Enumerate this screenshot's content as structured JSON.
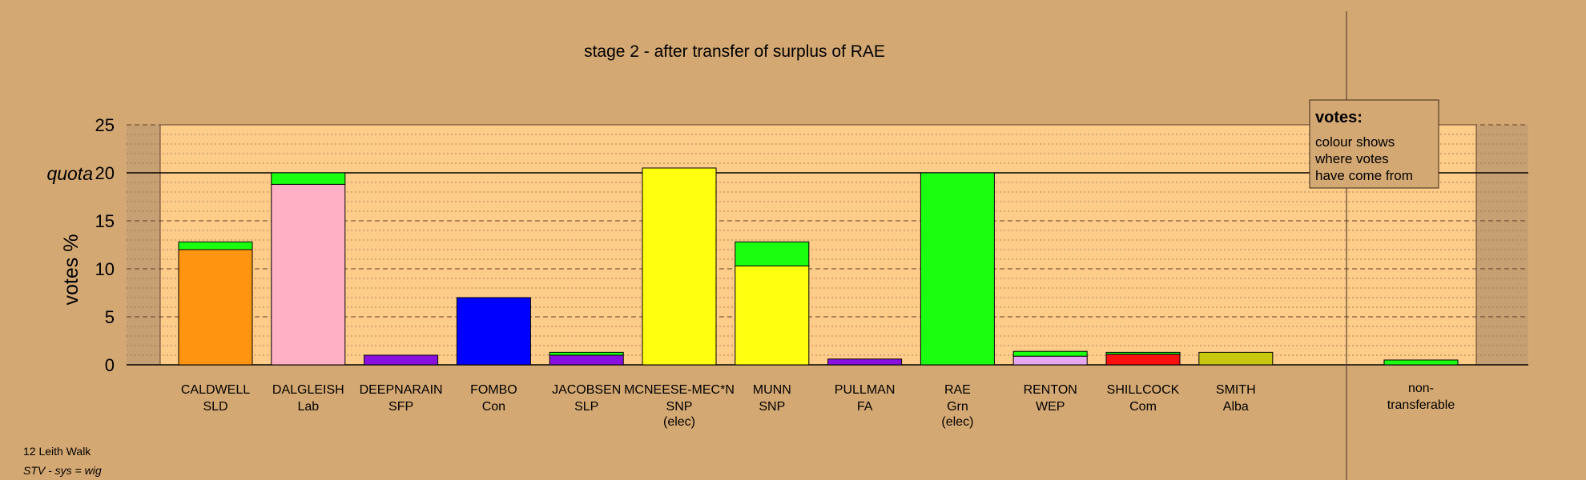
{
  "chart_data": {
    "type": "bar",
    "title": "stage 2 - after transfer of surplus of RAE",
    "ylabel": "votes %",
    "ylim": [
      0,
      25
    ],
    "yticks": [
      0,
      5,
      10,
      15,
      20,
      25
    ],
    "quota": 20,
    "quota_label": "quota",
    "grid": true,
    "legend_placement": "top-right",
    "legend": {
      "title": "votes:",
      "lines": [
        "colour shows",
        "where votes",
        "have come from"
      ]
    },
    "candidates": [
      {
        "name": "CALDWELL",
        "party": "SLD",
        "note": "",
        "segments": [
          {
            "value": 12.0,
            "color": "#ff9410"
          },
          {
            "value": 0.8,
            "color": "#1aff10"
          }
        ]
      },
      {
        "name": "DALGLEISH",
        "party": "Lab",
        "note": "",
        "segments": [
          {
            "value": 18.8,
            "color": "#ffb0c4"
          },
          {
            "value": 1.2,
            "color": "#1aff10"
          }
        ]
      },
      {
        "name": "DEEPNARAIN",
        "party": "SFP",
        "note": "",
        "segments": [
          {
            "value": 1.0,
            "color": "#8a10e0"
          }
        ]
      },
      {
        "name": "FOMBO",
        "party": "Con",
        "note": "",
        "segments": [
          {
            "value": 7.0,
            "color": "#0000ff"
          }
        ]
      },
      {
        "name": "JACOBSEN",
        "party": "SLP",
        "note": "",
        "segments": [
          {
            "value": 1.0,
            "color": "#8a10e0"
          },
          {
            "value": 0.3,
            "color": "#1aff10"
          }
        ]
      },
      {
        "name": "MCNEESE-MEC*N",
        "party": "SNP",
        "note": "(elec)",
        "segments": [
          {
            "value": 20.5,
            "color": "#ffff10"
          }
        ]
      },
      {
        "name": "MUNN",
        "party": "SNP",
        "note": "",
        "segments": [
          {
            "value": 10.3,
            "color": "#ffff10"
          },
          {
            "value": 2.5,
            "color": "#1aff10"
          }
        ]
      },
      {
        "name": "PULLMAN",
        "party": "FA",
        "note": "",
        "segments": [
          {
            "value": 0.6,
            "color": "#8a10e0"
          }
        ]
      },
      {
        "name": "RAE",
        "party": "Grn",
        "note": "(elec)",
        "segments": [
          {
            "value": 20.0,
            "color": "#1aff10"
          }
        ]
      },
      {
        "name": "RENTON",
        "party": "WEP",
        "note": "",
        "segments": [
          {
            "value": 0.9,
            "color": "#e6a8f0"
          },
          {
            "value": 0.5,
            "color": "#1aff10"
          }
        ]
      },
      {
        "name": "SHILLCOCK",
        "party": "Com",
        "note": "",
        "segments": [
          {
            "value": 1.1,
            "color": "#ff1010"
          },
          {
            "value": 0.2,
            "color": "#1aff10"
          }
        ]
      },
      {
        "name": "SMITH",
        "party": "Alba",
        "note": "",
        "segments": [
          {
            "value": 1.3,
            "color": "#c8c810"
          }
        ]
      }
    ],
    "non_transferable": {
      "label_lines": [
        "non-",
        "transferable"
      ],
      "segments": [
        {
          "value": 0.5,
          "color": "#1aff10"
        }
      ]
    }
  },
  "footer": {
    "location": "12 Leith Walk",
    "system": "STV - sys = wig"
  }
}
